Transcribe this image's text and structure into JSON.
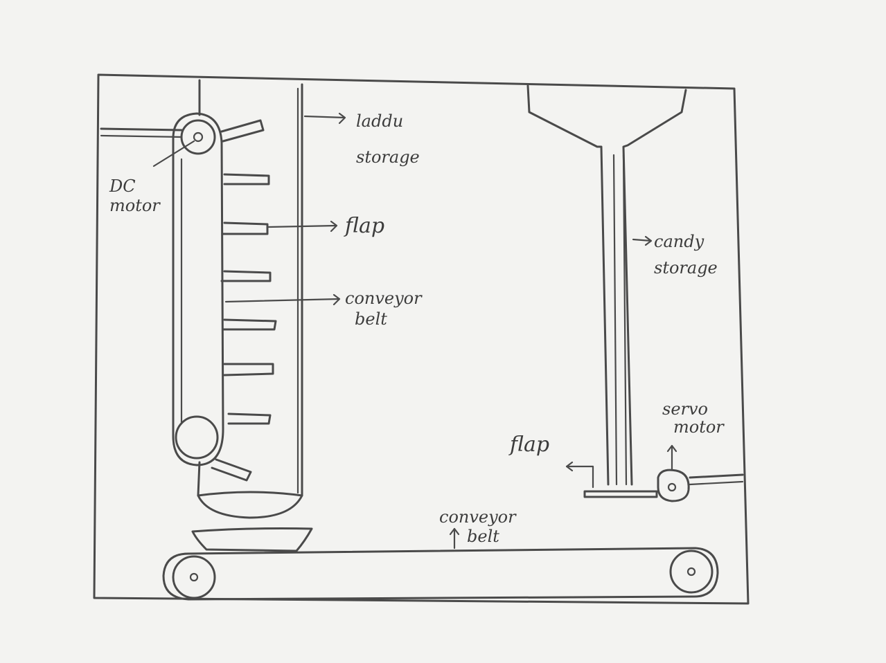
{
  "labels": {
    "laddu_storage_1": "laddu",
    "laddu_storage_2": "storage",
    "dc_motor_1": "DC",
    "dc_motor_2": "motor",
    "flap_left": "flap",
    "conveyor_left_1": "conveyor",
    "conveyor_left_2": "belt",
    "candy_storage_1": "candy",
    "candy_storage_2": "storage",
    "servo_motor_1": "servo",
    "servo_motor_2": "motor",
    "flap_right": "flap",
    "conveyor_bottom_1": "conveyor",
    "conveyor_bottom_2": "belt"
  }
}
